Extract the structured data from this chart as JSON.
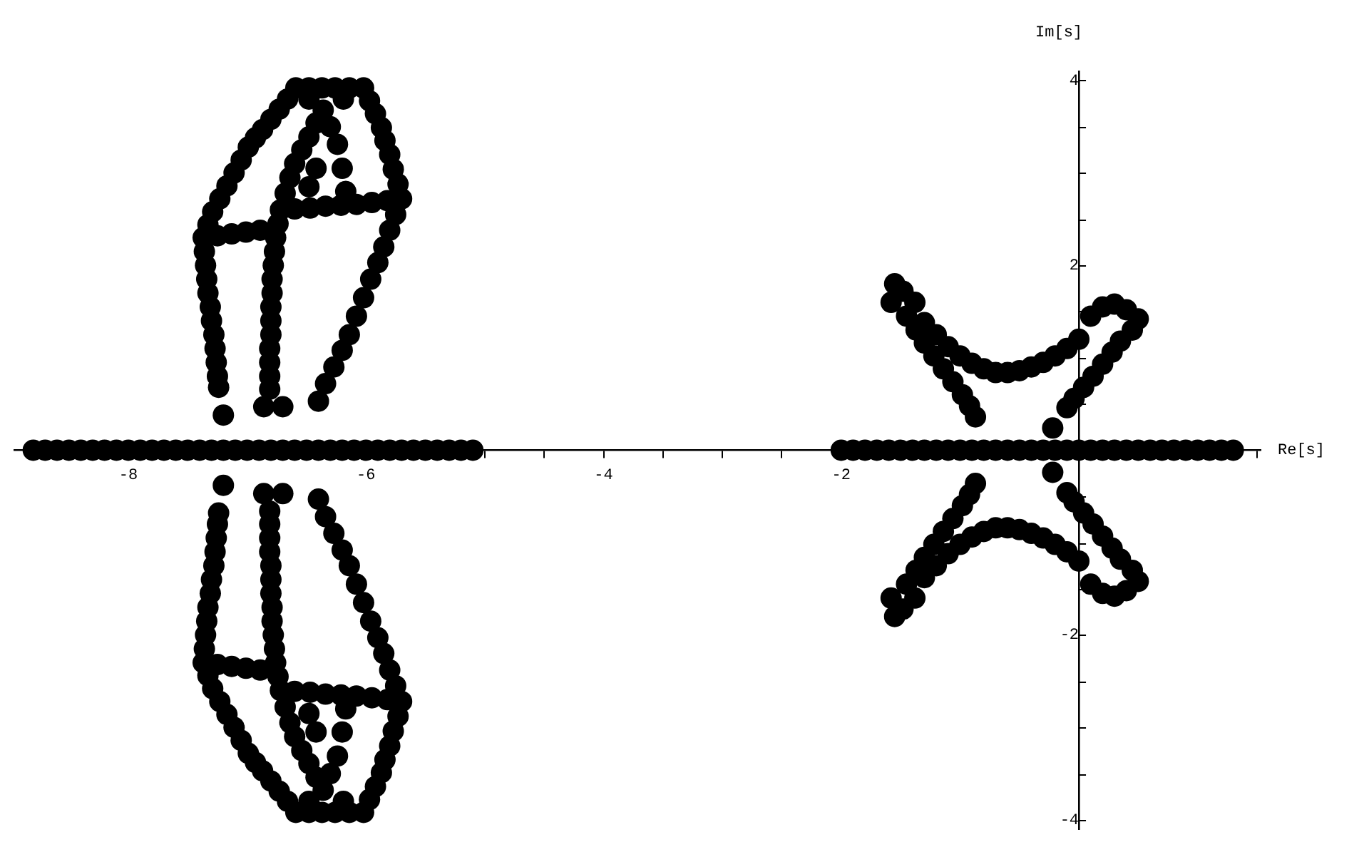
{
  "chart_data": {
    "type": "scatter",
    "xlabel": "Re[s]",
    "ylabel": "Im[s]",
    "xlim": [
      -8.96,
      1.53
    ],
    "ylim": [
      -4.1,
      4.1
    ],
    "xticks": [
      {
        "value": -8.5,
        "label": null
      },
      {
        "value": -8,
        "label": "-8"
      },
      {
        "value": -7.5,
        "label": null
      },
      {
        "value": -7,
        "label": null
      },
      {
        "value": -6.5,
        "label": null
      },
      {
        "value": -6,
        "label": "-6"
      },
      {
        "value": -5.5,
        "label": null
      },
      {
        "value": -5,
        "label": null
      },
      {
        "value": -4.5,
        "label": null
      },
      {
        "value": -4,
        "label": "-4"
      },
      {
        "value": -3.5,
        "label": null
      },
      {
        "value": -3,
        "label": null
      },
      {
        "value": -2.5,
        "label": null
      },
      {
        "value": -2,
        "label": "-2"
      },
      {
        "value": -1.5,
        "label": null
      },
      {
        "value": -1,
        "label": null
      },
      {
        "value": -0.5,
        "label": null
      },
      {
        "value": 0.5,
        "label": null
      },
      {
        "value": 1,
        "label": null
      },
      {
        "value": 1.5,
        "label": null
      }
    ],
    "yticks": [
      {
        "value": -4,
        "label": "-4"
      },
      {
        "value": -3.5,
        "label": null
      },
      {
        "value": -3,
        "label": null
      },
      {
        "value": -2.5,
        "label": null
      },
      {
        "value": -2,
        "label": "-2"
      },
      {
        "value": -1.5,
        "label": null
      },
      {
        "value": -1,
        "label": null
      },
      {
        "value": -0.5,
        "label": null
      },
      {
        "value": 0.5,
        "label": null
      },
      {
        "value": 1,
        "label": null
      },
      {
        "value": 1.5,
        "label": null
      },
      {
        "value": 2,
        "label": "2"
      },
      {
        "value": 2.5,
        "label": null
      },
      {
        "value": 3,
        "label": null
      },
      {
        "value": 3.5,
        "label": null
      },
      {
        "value": 4,
        "label": "4"
      }
    ],
    "grid": false,
    "legend": false,
    "marker": "circle",
    "series": [
      {
        "color": "#000000",
        "x": [
          -8.8,
          -8.7,
          -8.6,
          -8.5,
          -8.4,
          -8.3,
          -8.2,
          -8.1,
          -8.0,
          -7.9,
          -7.8,
          -7.7,
          -7.6,
          -7.5,
          -7.4,
          -7.3,
          -7.2,
          -7.1,
          -7.0,
          -6.9,
          -6.8,
          -6.7,
          -6.6,
          -6.5,
          -6.4,
          -6.3,
          -6.2,
          -6.1,
          -6.0,
          -5.9,
          -5.8,
          -5.7,
          -5.6,
          -5.5,
          -5.4,
          -5.3,
          -5.2,
          -5.1,
          -2.0,
          -1.9,
          -1.8,
          -1.7,
          -1.6,
          -1.5,
          -1.4,
          -1.3,
          -1.2,
          -1.1,
          -1.0,
          -0.9,
          -0.8,
          -0.7,
          -0.6,
          -0.5,
          -0.4,
          -0.3,
          -0.2,
          -0.1,
          0.0,
          0.1,
          0.2,
          0.3,
          0.4,
          0.5,
          0.6,
          0.7,
          0.8,
          0.9,
          1.0,
          1.1,
          1.2,
          1.3
        ],
        "values": [
          0,
          0,
          0,
          0,
          0,
          0,
          0,
          0,
          0,
          0,
          0,
          0,
          0,
          0,
          0,
          0,
          0,
          0,
          0,
          0,
          0,
          0,
          0,
          0,
          0,
          0,
          0,
          0,
          0,
          0,
          0,
          0,
          0,
          0,
          0,
          0,
          0,
          0,
          0,
          0,
          0,
          0,
          0,
          0,
          0,
          0,
          0,
          0,
          0,
          0,
          0,
          0,
          0,
          0,
          0,
          0,
          0,
          0,
          0,
          0,
          0,
          0,
          0,
          0,
          0,
          0,
          0,
          0,
          0,
          0,
          0,
          0
        ]
      },
      {
        "color": "#000000",
        "x": [
          -6.59,
          -6.66,
          -6.73,
          -6.8,
          -6.87,
          -6.93,
          -6.99,
          -7.05,
          -7.11,
          -7.17,
          -7.23,
          -7.29,
          -7.33,
          -7.37,
          -7.36,
          -7.35,
          -7.34,
          -7.33,
          -7.31,
          -7.3,
          -7.28,
          -7.27,
          -7.26,
          -7.25,
          -7.24,
          -7.2,
          -6.48,
          -6.37,
          -6.26,
          -6.14,
          -6.02,
          -5.97,
          -5.92,
          -5.87,
          -5.84,
          -5.8,
          -5.77,
          -5.73,
          -5.7,
          -5.82,
          -5.95,
          -6.08,
          -6.21,
          -6.34,
          -6.47,
          -6.6,
          -6.72,
          -7.25,
          -7.13,
          -7.01,
          -6.89,
          -6.36,
          -6.42,
          -6.48,
          -6.54,
          -6.6,
          -6.64,
          -6.68,
          -6.74,
          -6.76,
          -6.77,
          -6.78,
          -6.79,
          -6.79,
          -6.8,
          -6.8,
          -6.8,
          -6.81,
          -6.81,
          -6.81,
          -6.81,
          -6.86,
          -6.7,
          -6.3,
          -6.24,
          -6.2,
          -6.17,
          -6.42,
          -6.48,
          -6.48,
          -6.19,
          -5.75,
          -5.8,
          -5.85,
          -5.9,
          -5.96,
          -6.02,
          -6.08,
          -6.14,
          -6.2,
          -6.27,
          -6.34,
          -6.4,
          -1.55,
          -1.58,
          -1.38,
          -1.48,
          -1.3,
          -1.2,
          -1.1,
          -1.0,
          -0.9,
          -0.8,
          -0.7,
          -0.6,
          -0.5,
          -0.4,
          -0.3,
          -0.2,
          -0.1,
          0.0,
          0.1,
          0.2,
          0.3,
          0.4,
          0.5,
          0.45,
          -1.45,
          -1.37,
          -1.3,
          -1.22,
          -1.14,
          -1.06,
          -0.98,
          -0.92,
          -0.87,
          0.35,
          0.28,
          0.2,
          0.12,
          0.04,
          -0.04,
          -0.1,
          -0.22
        ],
        "values": [
          3.92,
          3.8,
          3.69,
          3.58,
          3.47,
          3.38,
          3.28,
          3.14,
          3.0,
          2.86,
          2.72,
          2.58,
          2.44,
          2.3,
          2.15,
          2.0,
          1.85,
          1.7,
          1.55,
          1.4,
          1.25,
          1.1,
          0.95,
          0.8,
          0.68,
          0.38,
          3.92,
          3.92,
          3.92,
          3.92,
          3.92,
          3.78,
          3.64,
          3.49,
          3.35,
          3.2,
          3.04,
          2.88,
          2.72,
          2.7,
          2.68,
          2.66,
          2.65,
          2.64,
          2.62,
          2.61,
          2.6,
          2.32,
          2.34,
          2.36,
          2.38,
          3.68,
          3.54,
          3.39,
          3.25,
          3.1,
          2.95,
          2.78,
          2.45,
          2.3,
          2.15,
          2.0,
          1.85,
          1.7,
          1.55,
          1.4,
          1.25,
          1.1,
          0.95,
          0.8,
          0.66,
          0.47,
          0.47,
          3.5,
          3.31,
          3.05,
          2.8,
          3.05,
          2.85,
          3.8,
          3.8,
          2.55,
          2.38,
          2.2,
          2.03,
          1.85,
          1.65,
          1.45,
          1.25,
          1.08,
          0.9,
          0.72,
          0.53,
          1.8,
          1.6,
          1.6,
          1.72,
          1.38,
          1.25,
          1.12,
          1.02,
          0.94,
          0.88,
          0.84,
          0.84,
          0.86,
          0.9,
          0.95,
          1.02,
          1.1,
          1.2,
          1.45,
          1.55,
          1.58,
          1.52,
          1.42,
          1.3,
          1.45,
          1.3,
          1.16,
          1.02,
          0.88,
          0.74,
          0.6,
          0.48,
          0.36,
          1.18,
          1.06,
          0.93,
          0.8,
          0.68,
          0.56,
          0.46,
          0.24
        ]
      },
      {
        "color": "#000000",
        "x": [
          -6.59,
          -6.66,
          -6.73,
          -6.8,
          -6.87,
          -6.93,
          -6.99,
          -7.05,
          -7.11,
          -7.17,
          -7.23,
          -7.29,
          -7.33,
          -7.37,
          -7.36,
          -7.35,
          -7.34,
          -7.33,
          -7.31,
          -7.3,
          -7.28,
          -7.27,
          -7.26,
          -7.25,
          -7.24,
          -7.2,
          -6.48,
          -6.37,
          -6.26,
          -6.14,
          -6.02,
          -5.97,
          -5.92,
          -5.87,
          -5.84,
          -5.8,
          -5.77,
          -5.73,
          -5.7,
          -5.82,
          -5.95,
          -6.08,
          -6.21,
          -6.34,
          -6.47,
          -6.6,
          -6.72,
          -7.25,
          -7.13,
          -7.01,
          -6.89,
          -6.36,
          -6.42,
          -6.48,
          -6.54,
          -6.6,
          -6.64,
          -6.68,
          -6.74,
          -6.76,
          -6.77,
          -6.78,
          -6.79,
          -6.79,
          -6.8,
          -6.8,
          -6.8,
          -6.81,
          -6.81,
          -6.81,
          -6.81,
          -6.86,
          -6.7,
          -6.3,
          -6.24,
          -6.2,
          -6.17,
          -6.42,
          -6.48,
          -6.48,
          -6.19,
          -5.75,
          -5.8,
          -5.85,
          -5.9,
          -5.96,
          -6.02,
          -6.08,
          -6.14,
          -6.2,
          -6.27,
          -6.34,
          -6.4,
          -1.55,
          -1.58,
          -1.38,
          -1.48,
          -1.3,
          -1.2,
          -1.1,
          -1.0,
          -0.9,
          -0.8,
          -0.7,
          -0.6,
          -0.5,
          -0.4,
          -0.3,
          -0.2,
          -0.1,
          0.0,
          0.1,
          0.2,
          0.3,
          0.4,
          0.5,
          0.45,
          -1.45,
          -1.37,
          -1.3,
          -1.22,
          -1.14,
          -1.06,
          -0.98,
          -0.92,
          -0.87,
          0.35,
          0.28,
          0.2,
          0.12,
          0.04,
          -0.04,
          -0.1,
          -0.22
        ],
        "values": [
          -3.92,
          -3.8,
          -3.69,
          -3.58,
          -3.47,
          -3.38,
          -3.28,
          -3.14,
          -3.0,
          -2.86,
          -2.72,
          -2.58,
          -2.44,
          -2.3,
          -2.15,
          -2.0,
          -1.85,
          -1.7,
          -1.55,
          -1.4,
          -1.25,
          -1.1,
          -0.95,
          -0.8,
          -0.68,
          -0.38,
          -3.92,
          -3.92,
          -3.92,
          -3.92,
          -3.92,
          -3.78,
          -3.64,
          -3.49,
          -3.35,
          -3.2,
          -3.04,
          -2.88,
          -2.72,
          -2.7,
          -2.68,
          -2.66,
          -2.65,
          -2.64,
          -2.62,
          -2.61,
          -2.6,
          -2.32,
          -2.34,
          -2.36,
          -2.38,
          -3.68,
          -3.54,
          -3.39,
          -3.25,
          -3.1,
          -2.95,
          -2.78,
          -2.45,
          -2.3,
          -2.15,
          -2.0,
          -1.85,
          -1.7,
          -1.55,
          -1.4,
          -1.25,
          -1.1,
          -0.95,
          -0.8,
          -0.66,
          -0.47,
          -0.47,
          -3.5,
          -3.31,
          -3.05,
          -2.8,
          -3.05,
          -2.85,
          -3.8,
          -3.8,
          -2.55,
          -2.38,
          -2.2,
          -2.03,
          -1.85,
          -1.65,
          -1.45,
          -1.25,
          -1.08,
          -0.9,
          -0.72,
          -0.53,
          -1.8,
          -1.6,
          -1.6,
          -1.72,
          -1.38,
          -1.25,
          -1.12,
          -1.02,
          -0.94,
          -0.88,
          -0.84,
          -0.84,
          -0.86,
          -0.9,
          -0.95,
          -1.02,
          -1.1,
          -1.2,
          -1.45,
          -1.55,
          -1.58,
          -1.52,
          -1.42,
          -1.3,
          -1.45,
          -1.3,
          -1.16,
          -1.02,
          -0.88,
          -0.74,
          -0.6,
          -0.48,
          -0.36,
          -1.18,
          -1.06,
          -0.93,
          -0.8,
          -0.68,
          -0.56,
          -0.46,
          -0.24
        ]
      }
    ]
  }
}
